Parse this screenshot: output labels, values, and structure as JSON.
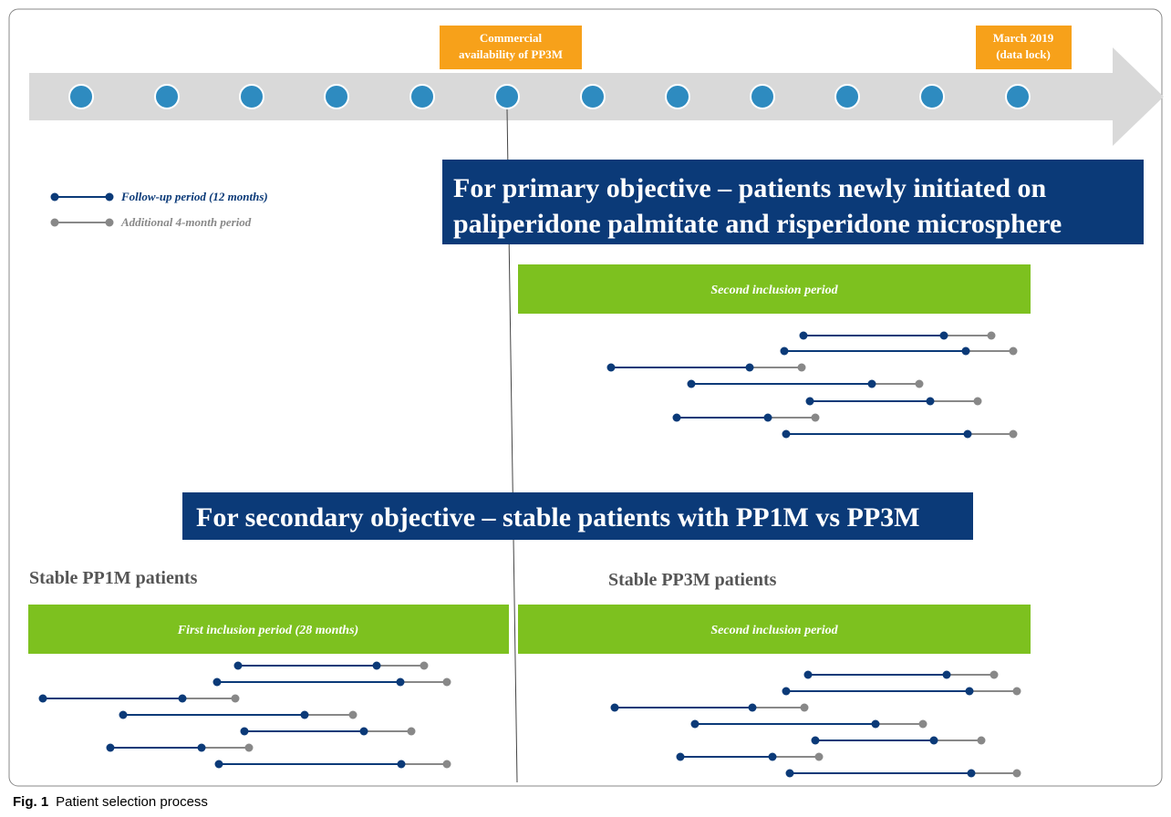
{
  "timeline": {
    "commercial_marker": {
      "lines": [
        "Commercial",
        "availability of PP3M"
      ]
    },
    "data_lock_marker": {
      "lines": [
        "March 2019",
        "(data lock)"
      ]
    }
  },
  "legend": {
    "follow_up": "Follow-up period (12 months)",
    "additional": "Additional 4-month period"
  },
  "primary": {
    "banner": {
      "lines": [
        "For primary objective – patients newly initiated on",
        "paliperidone palmitate and risperidone microsphere"
      ]
    },
    "period": "Second inclusion period"
  },
  "secondary": {
    "banner": "For secondary objective – stable patients with PP1M vs PP3M",
    "pp1m": {
      "heading": "Stable PP1M patients",
      "period": "First inclusion period (28 months)"
    },
    "pp3m": {
      "heading": "Stable PP3M patients",
      "period": "Second inclusion period"
    }
  },
  "caption": {
    "label": "Fig. 1",
    "text": "Patient selection process"
  }
}
